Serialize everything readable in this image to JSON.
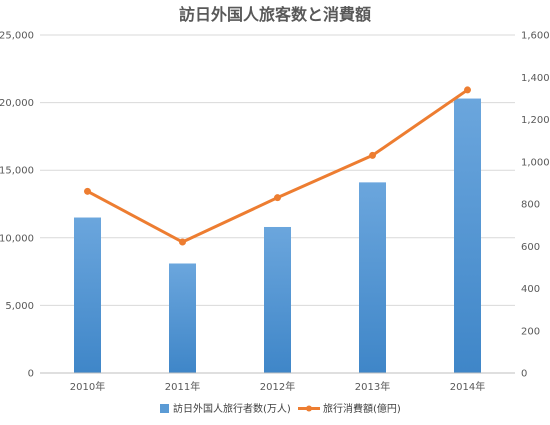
{
  "chart_data": {
    "type": "bar",
    "title": "訪日外国人旅客数と消費額",
    "categories": [
      "2010年",
      "2011年",
      "2012年",
      "2013年",
      "2014年"
    ],
    "series": [
      {
        "name": "訪日外国人旅行者数(万人)",
        "type": "bar",
        "axis": "left",
        "values": [
          11500,
          8100,
          10800,
          14100,
          20300
        ]
      },
      {
        "name": "旅行消費額(億円)",
        "type": "line",
        "axis": "right",
        "values": [
          860,
          620,
          830,
          1030,
          1340
        ]
      }
    ],
    "ylim_left": [
      0,
      25000
    ],
    "yticks_left": [
      "0",
      "5,000",
      "10,000",
      "15,000",
      "20,000",
      "25,000"
    ],
    "ylim_right": [
      0,
      1600
    ],
    "yticks_right": [
      "0",
      "200",
      "400",
      "600",
      "800",
      "1,000",
      "1,200",
      "1,400",
      "1,600"
    ],
    "grid": true,
    "legend": "bottom",
    "colors": {
      "bar": "#5b9bd5",
      "bar_dark": "#4a8acb",
      "line": "#ed7d31",
      "grid": "#d9d9d9",
      "text": "#595959"
    }
  }
}
